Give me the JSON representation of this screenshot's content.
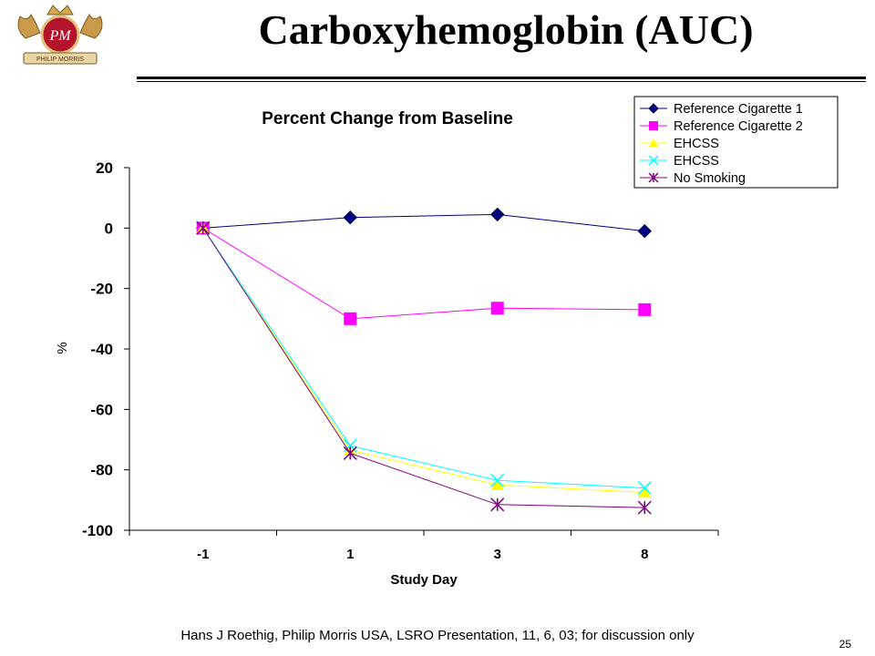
{
  "slide": {
    "title": "Carboxyhemoglobin (AUC)",
    "footer": "Hans J Roethig, Philip Morris USA, LSRO Presentation, 11, 6, 03; for discussion only",
    "page_number": "25",
    "logo_text": "PM",
    "logo_banner": "PHILIP MORRIS"
  },
  "chart_data": {
    "type": "line",
    "title": "Percent Change from Baseline",
    "xlabel": "Study Day",
    "ylabel": "%",
    "categories": [
      "-1",
      "1",
      "3",
      "8"
    ],
    "ylim": [
      -100,
      20
    ],
    "yticks": [
      20,
      0,
      -20,
      -40,
      -60,
      -80,
      -100
    ],
    "grid": false,
    "legend_position": "top-right",
    "series": [
      {
        "name": "Reference Cigarette 1",
        "values": [
          0,
          3.5,
          4.5,
          -1
        ],
        "color": "#000080",
        "marker": "diamond"
      },
      {
        "name": "Reference Cigarette 2",
        "values": [
          0,
          -30,
          -26.5,
          -27
        ],
        "color": "#FF00FF",
        "marker": "square"
      },
      {
        "name": "EHCSS",
        "values": [
          0,
          -73.5,
          -85,
          -87.5
        ],
        "color": "#FFFF00",
        "marker": "triangle"
      },
      {
        "name": "EHCSS",
        "values": [
          0,
          -72,
          -83.5,
          -86
        ],
        "color": "#00FFFF",
        "marker": "x"
      },
      {
        "name": "No Smoking",
        "values": [
          0,
          -74.5,
          -91.5,
          -92.5
        ],
        "color": "#800080",
        "marker": "star"
      }
    ]
  }
}
